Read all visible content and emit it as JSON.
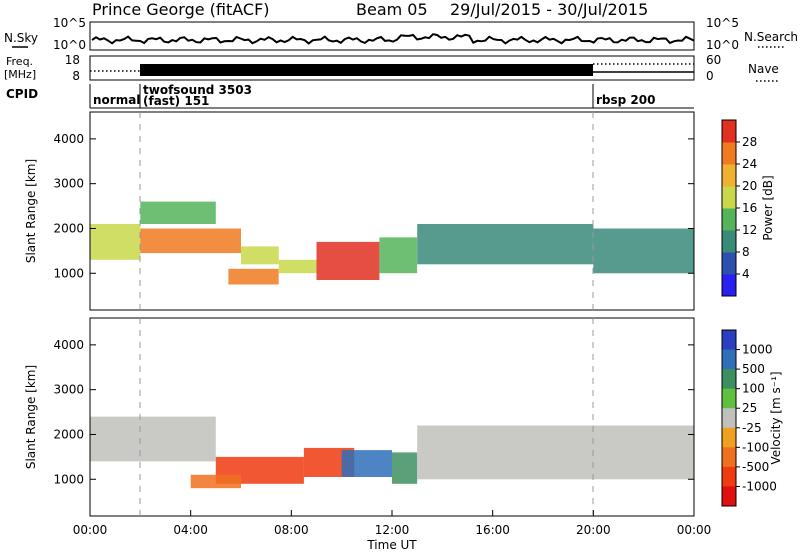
{
  "header": {
    "station": "Prince George (fitACF)",
    "beam": "Beam 05",
    "dates": "29/Jul/2015 - 30/Jul/2015"
  },
  "noise_strip": {
    "left_label": "N.Sky",
    "ticks_left": [
      "10^5",
      "10^0"
    ],
    "ticks_right": [
      "10^5",
      "10^0"
    ],
    "right_label": "N.Search"
  },
  "freq_strip": {
    "left_label_line1": "Freq.",
    "left_label_line2": "[MHz]",
    "ticks_left": [
      "18",
      "8"
    ],
    "ticks_right": [
      "60",
      "0"
    ],
    "right_label": "Nave"
  },
  "cpid": {
    "label": "CPID",
    "segments": [
      {
        "text1": "normal",
        "text2": "",
        "start_h": 0,
        "end_h": 2.0
      },
      {
        "text1": "twofsound 3503",
        "text2": "(fast) 151",
        "start_h": 2.0,
        "end_h": 20.0
      },
      {
        "text1": "rbsp 200",
        "text2": "",
        "start_h": 20.0,
        "end_h": 24.0
      }
    ]
  },
  "power_panel": {
    "ylabel": "Slant Range [km]",
    "yticks": [
      "1000",
      "2000",
      "3000",
      "4000"
    ],
    "colorbar_label": "Power [dB]",
    "colorbar_ticks": [
      "4",
      "8",
      "12",
      "16",
      "20",
      "24",
      "28"
    ],
    "colors": [
      "#2a1ef0",
      "#2c4fb0",
      "#3a8a7a",
      "#55b35a",
      "#c8d84a",
      "#f0b030",
      "#f07a20",
      "#e03020"
    ]
  },
  "velocity_panel": {
    "ylabel": "Slant Range [km]",
    "yticks": [
      "1000",
      "2000",
      "3000",
      "4000"
    ],
    "colorbar_label": "Velocity [m s⁻¹]",
    "colorbar_ticks": [
      "1000",
      "500",
      "100",
      "25",
      "-25",
      "-100",
      "-500",
      "-1000"
    ],
    "colors": [
      "#2a3fc0",
      "#2f6fb8",
      "#3d8f60",
      "#62c040",
      "#c0c0bc",
      "#f0a020",
      "#f07020",
      "#f03a10",
      "#e01010"
    ]
  },
  "xaxis": {
    "ticks": [
      "00:00",
      "04:00",
      "08:00",
      "12:00",
      "16:00",
      "20:00",
      "00:00"
    ],
    "label": "Time UT"
  },
  "chart_data": {
    "type": "heatmap",
    "x_range_hours": [
      0,
      24
    ],
    "y_range_km": [
      180,
      4600
    ],
    "mode_changes_hours": [
      2.0,
      20.0
    ],
    "power_regions": [
      {
        "t0": 0.0,
        "t1": 2.0,
        "r0": 1300,
        "r1": 2100,
        "db": 18
      },
      {
        "t0": 2.0,
        "t1": 6.0,
        "r0": 1450,
        "r1": 2000,
        "db": 24
      },
      {
        "t0": 2.0,
        "t1": 5.0,
        "r0": 2100,
        "r1": 2600,
        "db": 14
      },
      {
        "t0": 5.5,
        "t1": 7.5,
        "r0": 750,
        "r1": 1100,
        "db": 26
      },
      {
        "t0": 6.0,
        "t1": 7.5,
        "r0": 1200,
        "r1": 1600,
        "db": 18
      },
      {
        "t0": 7.5,
        "t1": 9.0,
        "r0": 1000,
        "r1": 1300,
        "db": 16
      },
      {
        "t0": 9.0,
        "t1": 11.5,
        "r0": 850,
        "r1": 1700,
        "db": 28
      },
      {
        "t0": 11.5,
        "t1": 13.0,
        "r0": 1000,
        "r1": 1800,
        "db": 12
      },
      {
        "t0": 13.0,
        "t1": 20.0,
        "r0": 1200,
        "r1": 2100,
        "db": 10
      },
      {
        "t0": 20.0,
        "t1": 24.0,
        "r0": 1000,
        "r1": 2000,
        "db": 10
      }
    ],
    "velocity_regions": [
      {
        "t0": 0.0,
        "t1": 5.0,
        "r0": 1400,
        "r1": 2400,
        "v": 0
      },
      {
        "t0": 5.0,
        "t1": 8.5,
        "r0": 900,
        "r1": 1500,
        "v": -400
      },
      {
        "t0": 4.0,
        "t1": 6.0,
        "r0": 800,
        "r1": 1100,
        "v": -120
      },
      {
        "t0": 8.5,
        "t1": 10.5,
        "r0": 1050,
        "r1": 1700,
        "v": -500
      },
      {
        "t0": 10.0,
        "t1": 12.0,
        "r0": 1050,
        "r1": 1650,
        "v": 500
      },
      {
        "t0": 12.0,
        "t1": 13.0,
        "r0": 900,
        "r1": 1600,
        "v": 60
      },
      {
        "t0": 13.0,
        "t1": 24.0,
        "r0": 1000,
        "r1": 2200,
        "v": 0
      }
    ]
  }
}
